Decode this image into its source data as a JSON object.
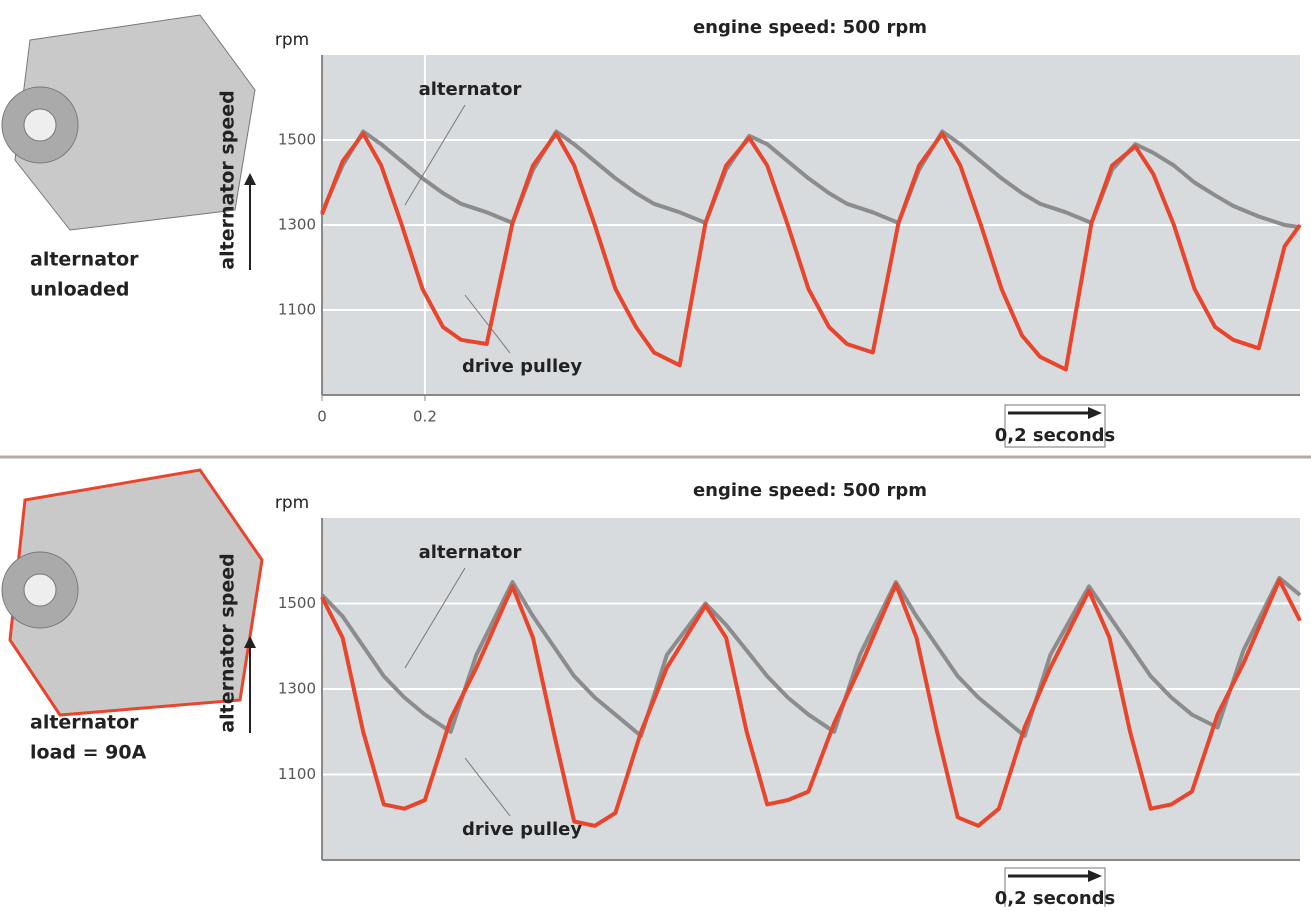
{
  "chart_data": [
    {
      "type": "line",
      "title": "engine speed: 500 rpm",
      "y_unit": "rpm",
      "y_label": "alternator speed",
      "side_label": [
        "alternator",
        "unloaded"
      ],
      "annotations": [
        "alternator",
        "drive pulley",
        "0,2 seconds"
      ],
      "xlim": [
        0,
        1.9
      ],
      "xticks": [
        0,
        0.2
      ],
      "ylim": [
        900,
        1700
      ],
      "yticks": [
        1100,
        1300,
        1500
      ],
      "grid": true,
      "x": [
        0,
        0.04,
        0.08,
        0.115,
        0.155,
        0.195,
        0.235,
        0.27,
        0.32,
        0.37,
        0.41,
        0.455,
        0.49,
        0.53,
        0.57,
        0.61,
        0.645,
        0.695,
        0.745,
        0.785,
        0.83,
        0.865,
        0.905,
        0.945,
        0.985,
        1.02,
        1.07,
        1.12,
        1.16,
        1.205,
        1.24,
        1.28,
        1.32,
        1.36,
        1.395,
        1.445,
        1.495,
        1.535,
        1.58,
        1.615,
        1.655,
        1.695,
        1.735,
        1.77,
        1.82,
        1.87,
        1.9
      ],
      "series": [
        {
          "name": "alternator",
          "color": "#8c8c8c",
          "values": [
            1330,
            1440,
            1520,
            1490,
            1450,
            1410,
            1375,
            1350,
            1330,
            1305,
            1430,
            1520,
            1490,
            1450,
            1410,
            1375,
            1350,
            1330,
            1305,
            1430,
            1510,
            1490,
            1450,
            1410,
            1375,
            1350,
            1330,
            1305,
            1430,
            1520,
            1490,
            1450,
            1410,
            1375,
            1350,
            1330,
            1305,
            1430,
            1490,
            1470,
            1440,
            1400,
            1370,
            1345,
            1320,
            1300,
            1295
          ]
        },
        {
          "name": "drive pulley",
          "color": "#e8452c",
          "values": [
            1325,
            1450,
            1515,
            1440,
            1300,
            1150,
            1060,
            1030,
            1020,
            1305,
            1440,
            1515,
            1440,
            1300,
            1150,
            1060,
            1000,
            970,
            1305,
            1440,
            1505,
            1440,
            1300,
            1150,
            1060,
            1020,
            1000,
            1305,
            1440,
            1515,
            1440,
            1300,
            1150,
            1040,
            990,
            960,
            1305,
            1440,
            1485,
            1420,
            1300,
            1150,
            1060,
            1030,
            1010,
            1250,
            1300
          ]
        }
      ]
    },
    {
      "type": "line",
      "title": "engine speed: 500 rpm",
      "y_unit": "rpm",
      "y_label": "alternator speed",
      "side_label": [
        "alternator",
        "load = 90A"
      ],
      "annotations": [
        "alternator",
        "drive pulley",
        "0,2 seconds"
      ],
      "xlim": [
        0,
        1.9
      ],
      "ylim": [
        900,
        1700
      ],
      "yticks": [
        1100,
        1300,
        1500
      ],
      "grid": true,
      "x": [
        0,
        0.04,
        0.08,
        0.12,
        0.16,
        0.2,
        0.25,
        0.3,
        0.37,
        0.41,
        0.45,
        0.49,
        0.53,
        0.57,
        0.62,
        0.67,
        0.745,
        0.785,
        0.825,
        0.865,
        0.905,
        0.945,
        0.995,
        1.045,
        1.115,
        1.155,
        1.195,
        1.235,
        1.275,
        1.315,
        1.365,
        1.415,
        1.49,
        1.53,
        1.57,
        1.61,
        1.65,
        1.69,
        1.74,
        1.79,
        1.86,
        1.9
      ],
      "series": [
        {
          "name": "alternator",
          "color": "#8c8c8c",
          "values": [
            1520,
            1470,
            1400,
            1330,
            1280,
            1240,
            1200,
            1380,
            1550,
            1470,
            1400,
            1330,
            1280,
            1240,
            1190,
            1380,
            1500,
            1450,
            1390,
            1330,
            1280,
            1240,
            1200,
            1380,
            1550,
            1470,
            1400,
            1330,
            1280,
            1240,
            1190,
            1380,
            1540,
            1470,
            1400,
            1330,
            1280,
            1240,
            1210,
            1390,
            1560,
            1520
          ]
        },
        {
          "name": "drive pulley",
          "color": "#e8452c",
          "values": [
            1515,
            1420,
            1200,
            1030,
            1020,
            1040,
            1230,
            1350,
            1540,
            1420,
            1200,
            990,
            980,
            1010,
            1200,
            1350,
            1495,
            1420,
            1200,
            1030,
            1040,
            1060,
            1220,
            1350,
            1545,
            1420,
            1200,
            1000,
            980,
            1020,
            1210,
            1350,
            1530,
            1420,
            1200,
            1020,
            1030,
            1060,
            1240,
            1360,
            1555,
            1460
          ]
        }
      ]
    }
  ]
}
